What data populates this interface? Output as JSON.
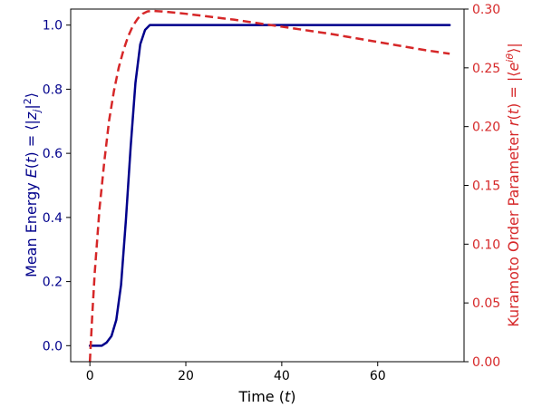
{
  "chart_data": {
    "type": "line",
    "xlabel": "Time (t)",
    "ylabel_left": "Mean Energy E(t) = ⟨|z_j|²⟩",
    "ylabel_right": "Kuramoto Order Parameter r(t) = |⟨e^{iθ}⟩|",
    "xlim": [
      -4,
      78
    ],
    "ylim_left": [
      -0.05,
      1.05
    ],
    "ylim_right": [
      0.0,
      0.3
    ],
    "x_ticks": [
      0,
      20,
      40,
      60
    ],
    "x_tick_labels": [
      "0",
      "20",
      "40",
      "60"
    ],
    "y_left_ticks": [
      0.0,
      0.2,
      0.4,
      0.6,
      0.8,
      1.0
    ],
    "y_left_tick_labels": [
      "0.0",
      "0.2",
      "0.4",
      "0.6",
      "0.8",
      "1.0"
    ],
    "y_right_ticks": [
      0.0,
      0.05,
      0.1,
      0.15,
      0.2,
      0.25,
      0.3
    ],
    "y_right_tick_labels": [
      "0.00",
      "0.05",
      "0.10",
      "0.15",
      "0.20",
      "0.25",
      "0.30"
    ],
    "grid": false,
    "colors": {
      "left": "#00008b",
      "right": "#d62728"
    },
    "series": [
      {
        "axis": "left",
        "style": "solid",
        "points": [
          [
            0,
            0.0
          ],
          [
            2.5,
            0.0
          ],
          [
            3.5,
            0.01
          ],
          [
            4.5,
            0.03
          ],
          [
            5.5,
            0.08
          ],
          [
            6.5,
            0.19
          ],
          [
            7.5,
            0.39
          ],
          [
            8.5,
            0.62
          ],
          [
            9.5,
            0.82
          ],
          [
            10.5,
            0.94
          ],
          [
            11.5,
            0.985
          ],
          [
            12.5,
            1.0
          ],
          [
            20,
            1.0
          ],
          [
            40,
            1.0
          ],
          [
            60,
            1.0
          ],
          [
            75,
            1.0
          ]
        ]
      },
      {
        "axis": "right",
        "style": "dashed",
        "points": [
          [
            0,
            0.0
          ],
          [
            0.5,
            0.04
          ],
          [
            1,
            0.075
          ],
          [
            2,
            0.13
          ],
          [
            3,
            0.17
          ],
          [
            4,
            0.205
          ],
          [
            5,
            0.23
          ],
          [
            6,
            0.25
          ],
          [
            7,
            0.265
          ],
          [
            8,
            0.277
          ],
          [
            9,
            0.286
          ],
          [
            10,
            0.292
          ],
          [
            11,
            0.296
          ],
          [
            12,
            0.298
          ],
          [
            13,
            0.2985
          ],
          [
            15,
            0.298
          ],
          [
            20,
            0.296
          ],
          [
            30,
            0.291
          ],
          [
            40,
            0.285
          ],
          [
            50,
            0.279
          ],
          [
            60,
            0.272
          ],
          [
            70,
            0.265
          ],
          [
            75,
            0.262
          ]
        ]
      }
    ]
  }
}
